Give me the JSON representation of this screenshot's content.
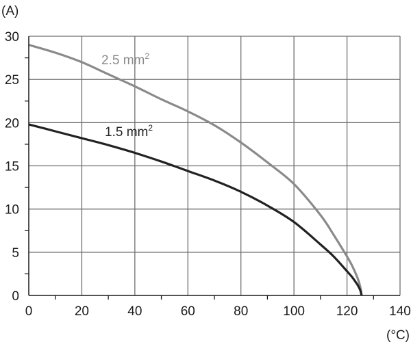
{
  "chart_data": {
    "type": "line",
    "xlabel": "(°C)",
    "ylabel": "(A)",
    "xlim": [
      0,
      140
    ],
    "ylim": [
      0,
      30
    ],
    "xticks": [
      "0",
      "20",
      "40",
      "60",
      "80",
      "100",
      "120",
      "140"
    ],
    "yticks": [
      "0",
      "5",
      "10",
      "15",
      "20",
      "25",
      "30"
    ],
    "grid": true,
    "legend": "none",
    "series": [
      {
        "name": "2.5 mm²",
        "label_text": "2.5 mm",
        "label_sup": "2",
        "color": "#8a8a8a",
        "x": [
          0,
          10,
          20,
          30,
          40,
          50,
          60,
          70,
          80,
          90,
          100,
          110,
          115,
          120,
          122,
          124,
          125,
          125.5
        ],
        "y": [
          29,
          28.1,
          27.0,
          25.6,
          24.2,
          22.7,
          21.3,
          19.7,
          17.7,
          15.4,
          12.9,
          9.3,
          7.0,
          4.5,
          3.4,
          2.0,
          1.0,
          0
        ]
      },
      {
        "name": "1.5 mm²",
        "label_text": "1.5 mm",
        "label_sup": "2",
        "color": "#222222",
        "x": [
          0,
          10,
          20,
          30,
          40,
          50,
          60,
          70,
          80,
          90,
          100,
          110,
          115,
          120,
          122,
          124,
          125,
          125.5
        ],
        "y": [
          19.8,
          19.0,
          18.2,
          17.4,
          16.5,
          15.5,
          14.4,
          13.3,
          12.0,
          10.4,
          8.5,
          5.9,
          4.5,
          2.8,
          2.1,
          1.2,
          0.6,
          0
        ]
      }
    ]
  }
}
